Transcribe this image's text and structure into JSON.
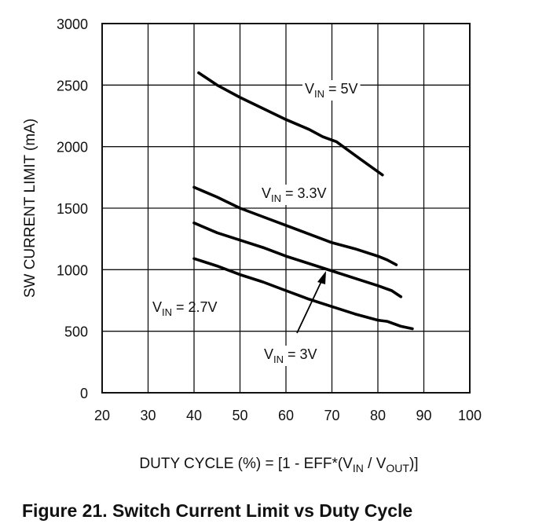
{
  "chart_data": {
    "type": "line",
    "title": "",
    "caption": "Figure 21.  Switch Current Limit vs Duty Cycle",
    "ylabel": "SW CURRENT LIMIT (mA)",
    "xlabel": {
      "parts": [
        {
          "text": "DUTY CYCLE (%) = [1 - EFF*(V",
          "sub": false
        },
        {
          "text": "IN",
          "sub": true
        },
        {
          "text": " / V",
          "sub": false
        },
        {
          "text": "OUT",
          "sub": true
        },
        {
          "text": ")]",
          "sub": false
        }
      ]
    },
    "xlim": [
      20,
      100
    ],
    "ylim": [
      0,
      3000
    ],
    "xticks": [
      20,
      30,
      40,
      50,
      60,
      70,
      80,
      90,
      100
    ],
    "yticks": [
      0,
      500,
      1000,
      1500,
      2000,
      2500,
      3000
    ],
    "grid": true,
    "series": [
      {
        "name_main": "V",
        "name_sub": "IN",
        "name_rest": " = 5V",
        "x": [
          41,
          45,
          50,
          55,
          60,
          65,
          68,
          71,
          75,
          78,
          81
        ],
        "y": [
          2600,
          2500,
          2400,
          2310,
          2220,
          2140,
          2080,
          2040,
          1930,
          1850,
          1770
        ]
      },
      {
        "name_main": "V",
        "name_sub": "IN",
        "name_rest": " = 3.3V",
        "x": [
          40,
          45,
          50,
          55,
          60,
          65,
          70,
          75,
          80,
          82,
          84
        ],
        "y": [
          1670,
          1590,
          1500,
          1430,
          1360,
          1290,
          1220,
          1170,
          1110,
          1080,
          1040
        ]
      },
      {
        "name_main": "V",
        "name_sub": "IN",
        "name_rest": " = 3V",
        "x": [
          40,
          45,
          50,
          55,
          60,
          65,
          70,
          75,
          80,
          83,
          85
        ],
        "y": [
          1380,
          1300,
          1240,
          1180,
          1110,
          1050,
          990,
          930,
          870,
          830,
          780
        ]
      },
      {
        "name_main": "V",
        "name_sub": "IN",
        "name_rest": " = 2.7V",
        "x": [
          40,
          45,
          50,
          55,
          60,
          65,
          70,
          75,
          80,
          82,
          85,
          87.5
        ],
        "y": [
          1090,
          1030,
          960,
          900,
          830,
          760,
          700,
          640,
          590,
          580,
          540,
          520
        ]
      }
    ]
  }
}
